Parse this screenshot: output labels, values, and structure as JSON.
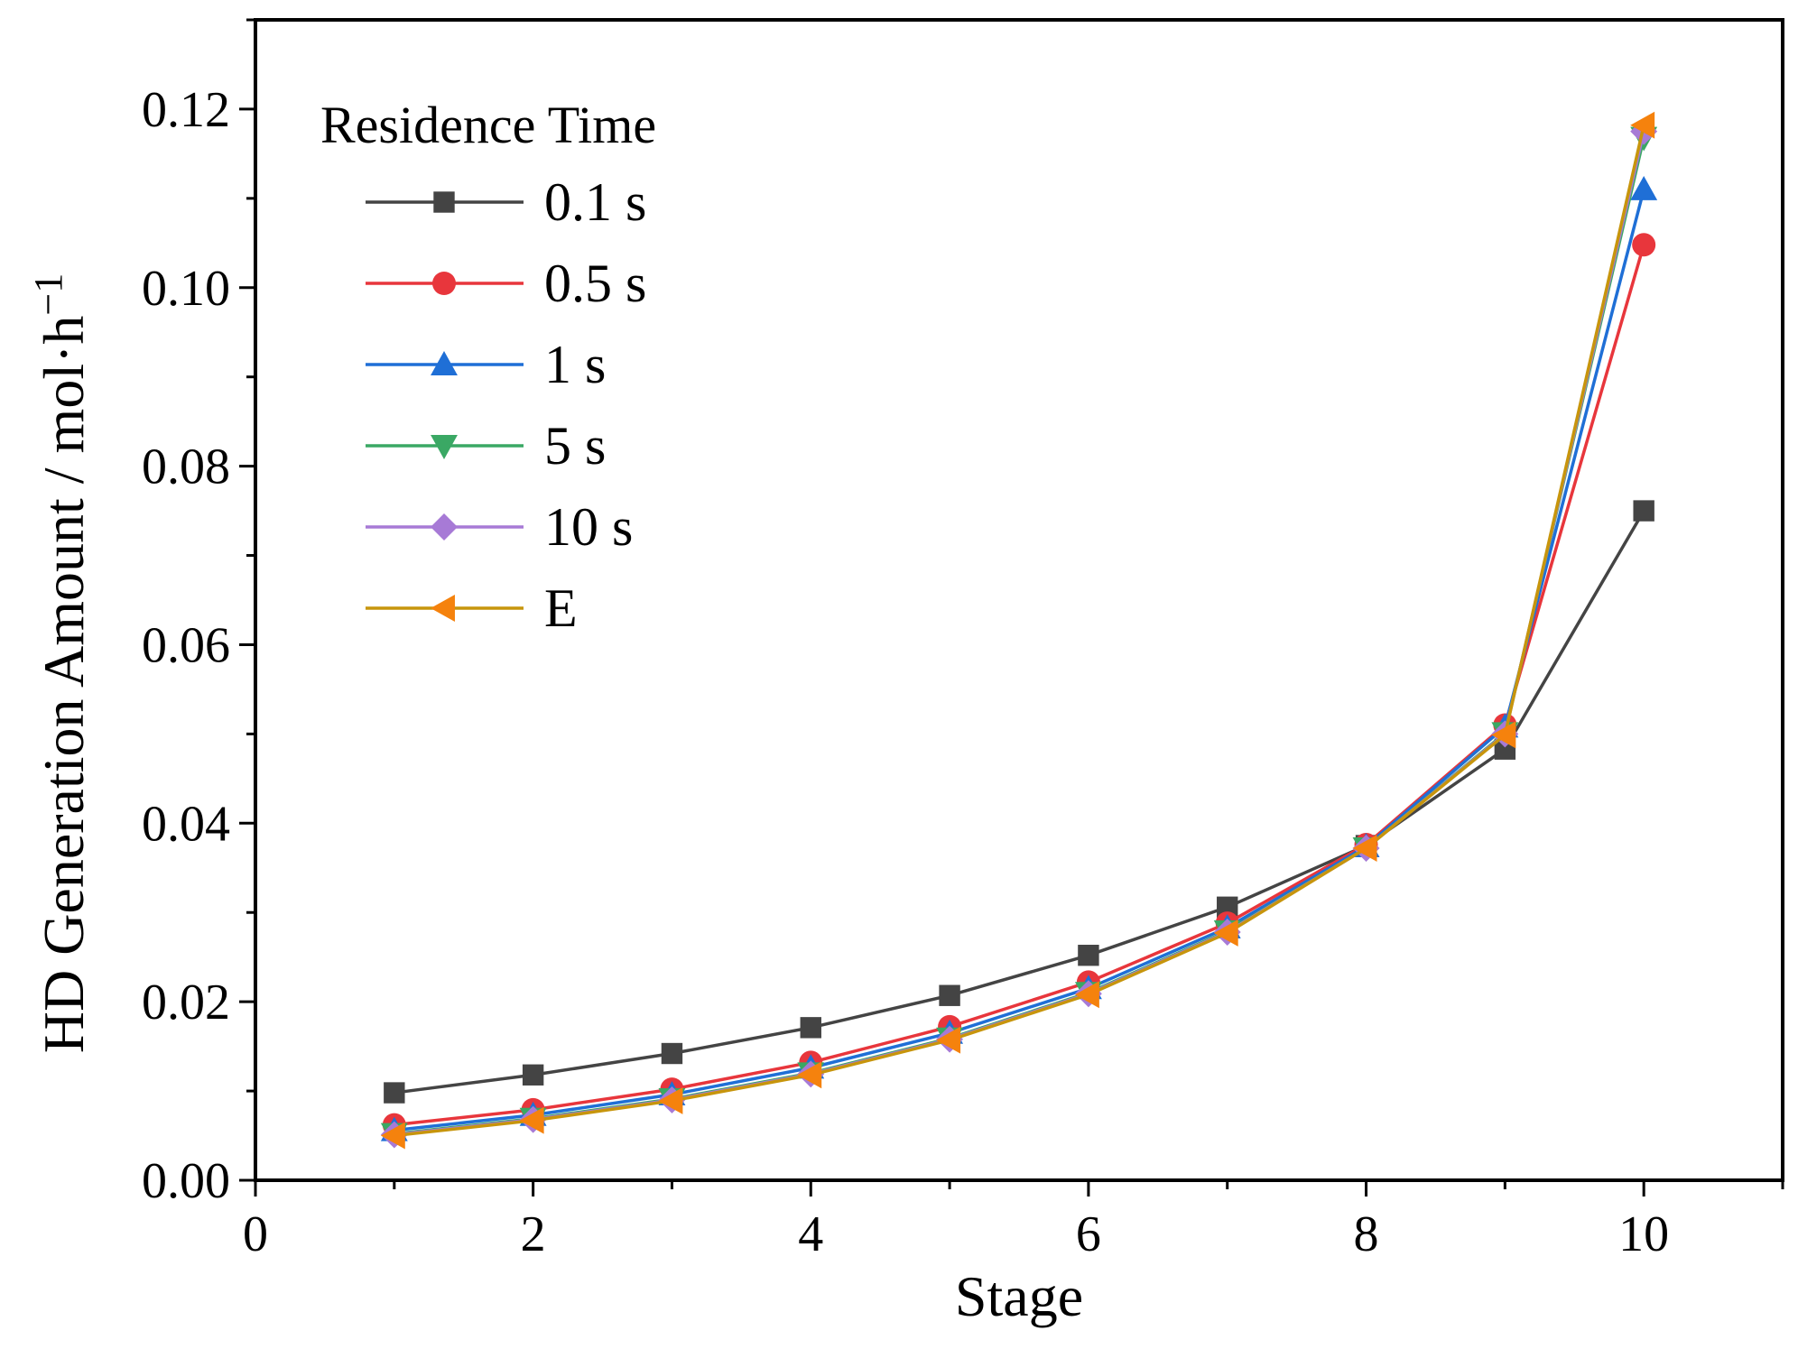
{
  "chart_data": {
    "type": "line",
    "title": "",
    "xlabel": "Stage",
    "ylabel": "HD Generation Amount / mol·h",
    "ylabel_sup": "−1",
    "xlim": [
      0,
      11
    ],
    "ylim": [
      0,
      0.13
    ],
    "xticks": [
      0,
      2,
      4,
      6,
      8,
      10
    ],
    "xtick_labels": [
      "0",
      "2",
      "4",
      "6",
      "8",
      "10"
    ],
    "yticks": [
      0,
      0.02,
      0.04,
      0.06,
      0.08,
      0.1,
      0.12
    ],
    "ytick_labels": [
      "0.00",
      "0.02",
      "0.04",
      "0.06",
      "0.08",
      "0.10",
      "0.12"
    ],
    "grid": false,
    "legend_title": "Residence Time",
    "legend_position": "top-left",
    "x": [
      1,
      2,
      3,
      4,
      5,
      6,
      7,
      8,
      9,
      10
    ],
    "series": [
      {
        "name": "0.1 s",
        "color": "#444444",
        "marker": "square",
        "values": [
          0.0098,
          0.0118,
          0.0142,
          0.0171,
          0.0207,
          0.0252,
          0.0306,
          0.0375,
          0.0483,
          0.075
        ]
      },
      {
        "name": "0.5 s",
        "color": "#e8363c",
        "marker": "circle",
        "values": [
          0.0062,
          0.0079,
          0.0102,
          0.0132,
          0.0172,
          0.0222,
          0.0288,
          0.0376,
          0.051,
          0.1048
        ]
      },
      {
        "name": "1 s",
        "color": "#1f6fd6",
        "marker": "triangle-up",
        "values": [
          0.0056,
          0.0073,
          0.0096,
          0.0126,
          0.0165,
          0.0215,
          0.0283,
          0.0374,
          0.0508,
          0.111
        ]
      },
      {
        "name": "5 s",
        "color": "#3aa864",
        "marker": "triangle-down",
        "values": [
          0.0052,
          0.0069,
          0.0091,
          0.012,
          0.0159,
          0.021,
          0.0279,
          0.0372,
          0.0501,
          0.1168
        ]
      },
      {
        "name": "10 s",
        "color": "#a77ad6",
        "marker": "diamond",
        "values": [
          0.0051,
          0.0068,
          0.009,
          0.0119,
          0.0158,
          0.0209,
          0.0278,
          0.0372,
          0.05,
          0.1175
        ]
      },
      {
        "name": "E",
        "color": "#f5820d",
        "line_color": "#c7950c",
        "marker": "triangle-left",
        "values": [
          0.005,
          0.0067,
          0.0089,
          0.0118,
          0.0157,
          0.0208,
          0.0277,
          0.0372,
          0.0499,
          0.1182
        ]
      }
    ]
  }
}
